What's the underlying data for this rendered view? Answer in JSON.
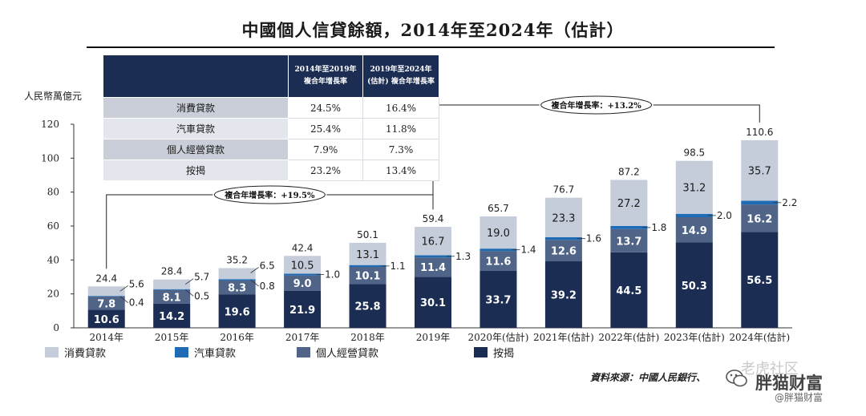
{
  "title": "中國個人信貸餘額，2014年至2024年（估計）",
  "source": "資料來源：中國人民銀行、",
  "watermarks": {
    "top": "老虎社区",
    "main": "胖猫财富",
    "sub": "@胖猫财富"
  },
  "table": {
    "header": [
      "",
      "2014年至2019年 複合年增長率",
      "2019年至2024年 (估計) 複合年增長率"
    ],
    "header_a_line1": "2014年至2019年",
    "header_a_line2": "複合年增長率",
    "header_b_line1": "2019年至2024年",
    "header_b_line2": "(估計) 複合年增長率",
    "rows": [
      {
        "label": "消費貸款",
        "a": "24.5%",
        "b": "16.4%"
      },
      {
        "label": "汽車貸款",
        "a": "25.4%",
        "b": "11.8%"
      },
      {
        "label": "個人經營貸款",
        "a": "7.9%",
        "b": "7.3%"
      },
      {
        "label": "按揭",
        "a": "23.2%",
        "b": "13.4%"
      }
    ]
  },
  "colors": {
    "mortgage": "#1b2d52",
    "business": "#4f6487",
    "auto": "#1f6bb5",
    "consumer": "#c5ccda"
  },
  "chart_data": {
    "type": "bar",
    "stacked": true,
    "ylabel": "人民幣萬億元",
    "ylim": [
      0,
      120
    ],
    "yticks": [
      0,
      20,
      40,
      60,
      80,
      100,
      120
    ],
    "categories": [
      "2014年",
      "2015年",
      "2016年",
      "2017年",
      "2018年",
      "2019年",
      "2020年(估計)",
      "2021年(估計)",
      "2022年(估計)",
      "2023年(估計)",
      "2024年(估計)"
    ],
    "series": [
      {
        "name": "按揭",
        "key": "mortgage",
        "values": [
          10.6,
          14.2,
          19.6,
          21.9,
          25.8,
          30.1,
          33.7,
          39.2,
          44.5,
          50.3,
          56.5
        ]
      },
      {
        "name": "個人經營貸款",
        "key": "business",
        "values": [
          7.8,
          8.1,
          8.3,
          9.0,
          10.1,
          11.4,
          11.6,
          12.6,
          13.7,
          14.9,
          16.2
        ]
      },
      {
        "name": "汽車貸款",
        "key": "auto",
        "values": [
          0.4,
          0.5,
          0.8,
          1.0,
          1.1,
          1.3,
          1.4,
          1.6,
          1.8,
          2.0,
          2.2
        ]
      },
      {
        "name": "消費貸款",
        "key": "consumer",
        "values": [
          5.6,
          5.7,
          6.5,
          10.5,
          13.1,
          16.7,
          19.0,
          23.3,
          27.2,
          31.2,
          35.7
        ]
      }
    ],
    "totals": [
      24.4,
      28.4,
      35.2,
      42.4,
      50.1,
      59.4,
      65.7,
      76.7,
      87.2,
      98.5,
      110.6
    ],
    "value_labels": {
      "mortgage": [
        "10.6",
        "14.2",
        "19.6",
        "21.9",
        "25.8",
        "30.1",
        "33.7",
        "39.2",
        "44.5",
        "50.3",
        "56.5"
      ],
      "business": [
        "7.8",
        "8.1",
        "8.3",
        "9.0",
        "10.1",
        "11.4",
        "11.6",
        "12.6",
        "13.7",
        "14.9",
        "16.2"
      ],
      "auto": [
        "0.4",
        "0.5",
        "0.8",
        "1.0",
        "1.1",
        "1.3",
        "1.4",
        "1.6",
        "1.8",
        "2.0",
        "2.2"
      ],
      "consumer": [
        "5.6",
        "5.7",
        "6.5",
        "10.5",
        "13.1",
        "16.7",
        "19.0",
        "23.3",
        "27.2",
        "31.2",
        "35.7"
      ],
      "totals": [
        "24.4",
        "28.4",
        "35.2",
        "42.4",
        "50.1",
        "59.4",
        "65.7",
        "76.7",
        "87.2",
        "98.5",
        "110.6"
      ]
    },
    "annotations": [
      {
        "text": "複合年增長率：+19.5%",
        "from": 0,
        "to": 5
      },
      {
        "text": "複合年增長率：+13.2%",
        "from": 5,
        "to": 10
      }
    ],
    "legend": [
      "消費貸款",
      "汽車貸款",
      "個人經營貸款",
      "按揭"
    ]
  }
}
